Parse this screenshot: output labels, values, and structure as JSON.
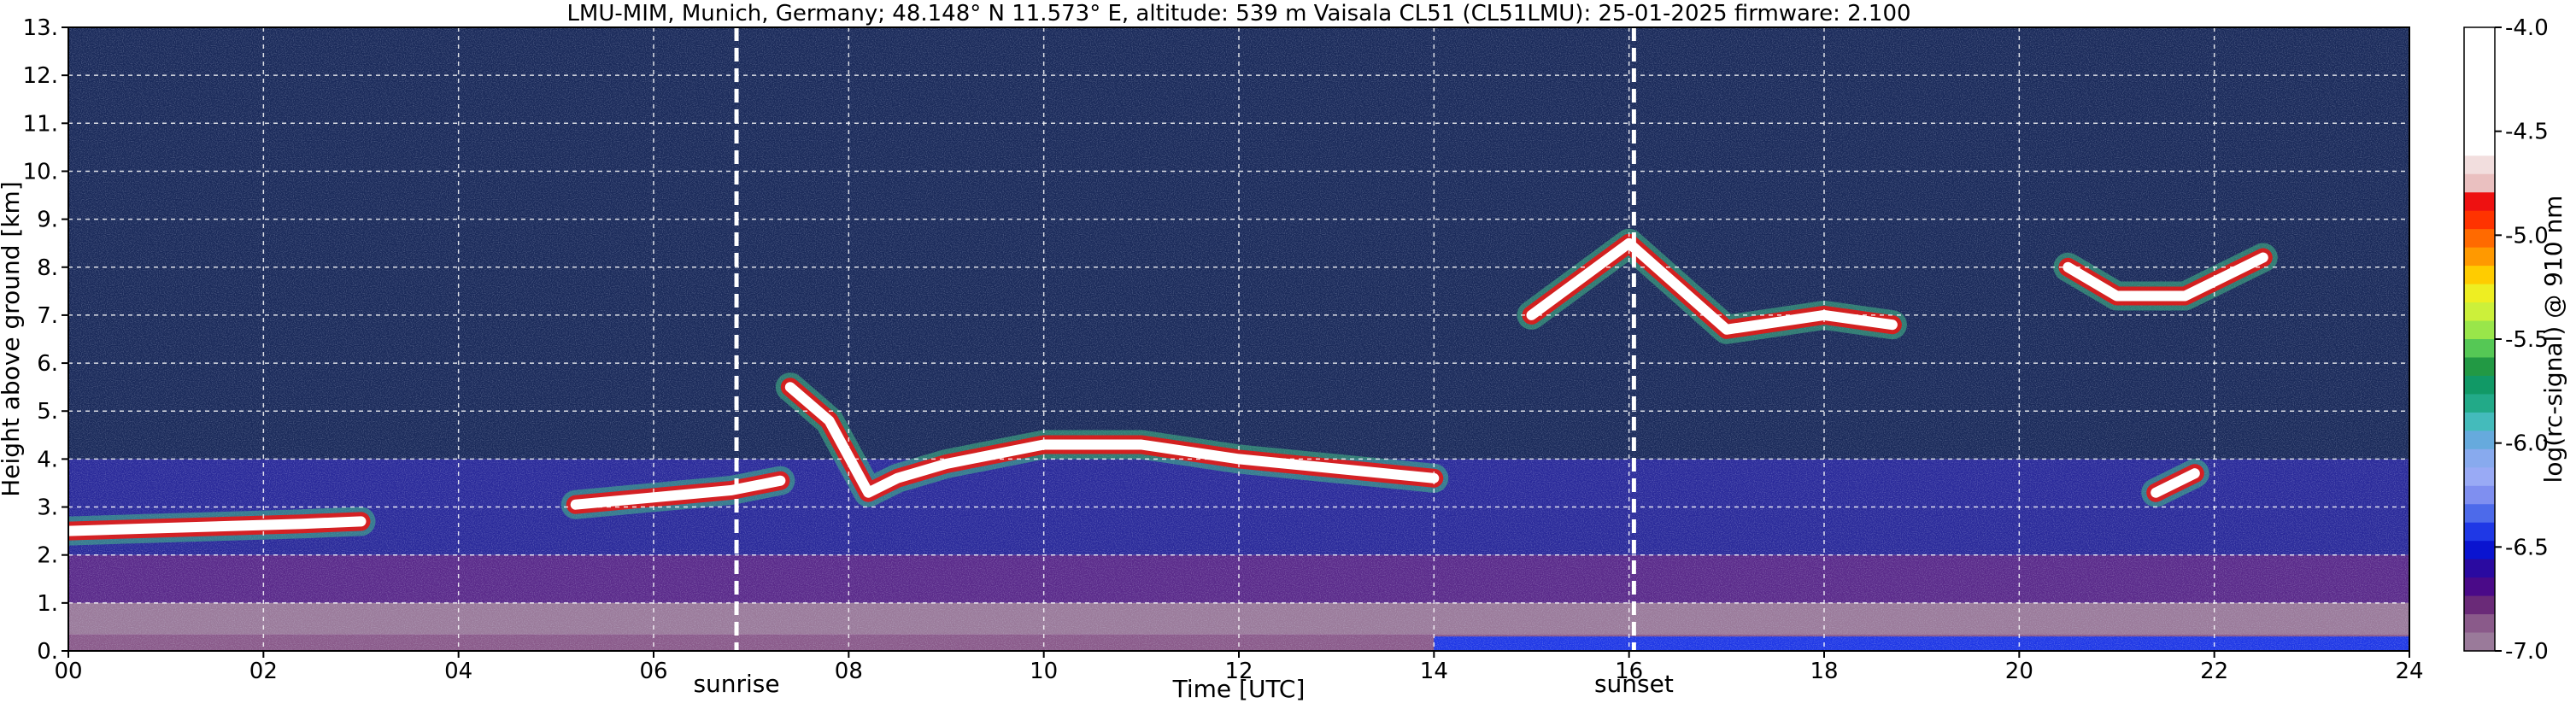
{
  "chart_data": {
    "type": "heatmap",
    "title": "LMU-MIM, Munich, Germany; 48.148° N 11.573° E, altitude: 539 m    Vaisala CL51 (CL51LMU): 25-01-2025    firmware: 2.100",
    "xlabel": "Time [UTC]",
    "ylabel": "Height above ground [km]",
    "xlim": [
      0,
      24
    ],
    "ylim": [
      0,
      13
    ],
    "x_ticks": [
      0,
      2,
      4,
      6,
      8,
      10,
      12,
      14,
      16,
      18,
      20,
      22,
      24
    ],
    "x_tick_labels": [
      "00",
      "02",
      "04",
      "06",
      "08",
      "10",
      "12",
      "14",
      "16",
      "18",
      "20",
      "22",
      "24"
    ],
    "y_ticks": [
      0,
      1,
      2,
      3,
      4,
      5,
      6,
      7,
      8,
      9,
      10,
      11,
      12,
      13
    ],
    "y_tick_labels": [
      "0.",
      "1.",
      "2.",
      "3.",
      "4.",
      "5.",
      "6.",
      "7.",
      "8.",
      "9.",
      "10.",
      "11.",
      "12.",
      "13."
    ],
    "grid": true,
    "markers": [
      {
        "label": "sunrise",
        "x": 6.85
      },
      {
        "label": "sunset",
        "x": 16.05
      }
    ],
    "colorbar": {
      "label": "log(rc-signal) @ 910 nm",
      "range": [
        -7.0,
        -4.0
      ],
      "ticks": [
        -4.0,
        -4.5,
        -5.0,
        -5.5,
        -6.0,
        -6.5,
        -7.0
      ],
      "tick_labels": [
        "-4.0",
        "-4.5",
        "-5.0",
        "-5.5",
        "-6.0",
        "-6.5",
        "-7.0"
      ],
      "colors_high_to_low": [
        "#ffffff",
        "#ffffff",
        "#ffffff",
        "#ffffff",
        "#ffffff",
        "#ffffff",
        "#ffffff",
        "#f2dede",
        "#eac0c0",
        "#ee1111",
        "#ff3300",
        "#ff6a00",
        "#ff9900",
        "#ffcc00",
        "#eeee22",
        "#ccf03a",
        "#99e64a",
        "#55c855",
        "#229944",
        "#119966",
        "#22aa88",
        "#44bbbb",
        "#66aadd",
        "#88aaee",
        "#99aaf5",
        "#7f8ff0",
        "#4d6aea",
        "#1f38e6",
        "#0a14d0",
        "#2a0aa0",
        "#4a0a88",
        "#6a2a78",
        "#8a5a8a",
        "#9a7a9a"
      ]
    },
    "background_layers": [
      {
        "y0": 0,
        "y1": 0.35,
        "x0": 0,
        "x1": 24,
        "color": "#8a5a8a"
      },
      {
        "y0": 0.35,
        "y1": 1.0,
        "x0": 0,
        "x1": 24,
        "color": "#9a7a9a"
      },
      {
        "y0": 1.0,
        "y1": 2.0,
        "x0": 0,
        "x1": 24,
        "color": "#5a2a8a"
      },
      {
        "y0": 2.0,
        "y1": 4.0,
        "x0": 0,
        "x1": 24,
        "color": "#2a2a9a"
      },
      {
        "y0": 4.0,
        "y1": 13.0,
        "x0": 0,
        "x1": 24,
        "color": "#1a2a5a"
      },
      {
        "y0": 0,
        "y1": 0.3,
        "x0": 14.0,
        "x1": 24,
        "color": "#1f38e6"
      }
    ],
    "cloud_layers": [
      {
        "name": "low-cloud-morning",
        "points": [
          [
            0,
            2.5
          ],
          [
            0.8,
            2.55
          ],
          [
            1.6,
            2.6
          ],
          [
            2.4,
            2.65
          ],
          [
            3.0,
            2.7
          ]
        ],
        "color": "#ffffff"
      },
      {
        "name": "cloud-dawn",
        "points": [
          [
            5.2,
            3.05
          ],
          [
            6.0,
            3.2
          ],
          [
            6.8,
            3.35
          ],
          [
            7.3,
            3.55
          ]
        ],
        "color": "#ffffff"
      },
      {
        "name": "main-cloud-deck",
        "points": [
          [
            7.4,
            5.5
          ],
          [
            7.8,
            4.8
          ],
          [
            8.2,
            3.3
          ],
          [
            8.5,
            3.6
          ],
          [
            9.0,
            3.9
          ],
          [
            10.0,
            4.3
          ],
          [
            11.0,
            4.3
          ],
          [
            12.0,
            4.0
          ],
          [
            13.0,
            3.8
          ],
          [
            14.0,
            3.6
          ]
        ],
        "color": "#ffffff"
      },
      {
        "name": "cirrus-afternoon",
        "points": [
          [
            15.0,
            7.0
          ],
          [
            16.0,
            8.5
          ],
          [
            17.0,
            6.7
          ],
          [
            18.0,
            7.0
          ],
          [
            18.7,
            6.8
          ]
        ],
        "color": "#ffffff"
      },
      {
        "name": "cirrus-evening",
        "points": [
          [
            20.5,
            8.0
          ],
          [
            21.0,
            7.4
          ],
          [
            21.7,
            7.4
          ],
          [
            22.5,
            8.2
          ]
        ],
        "color": "#ffffff"
      },
      {
        "name": "isolated-cloud-night",
        "points": [
          [
            21.4,
            3.3
          ],
          [
            21.8,
            3.7
          ]
        ],
        "color": "#ffffff"
      }
    ]
  }
}
